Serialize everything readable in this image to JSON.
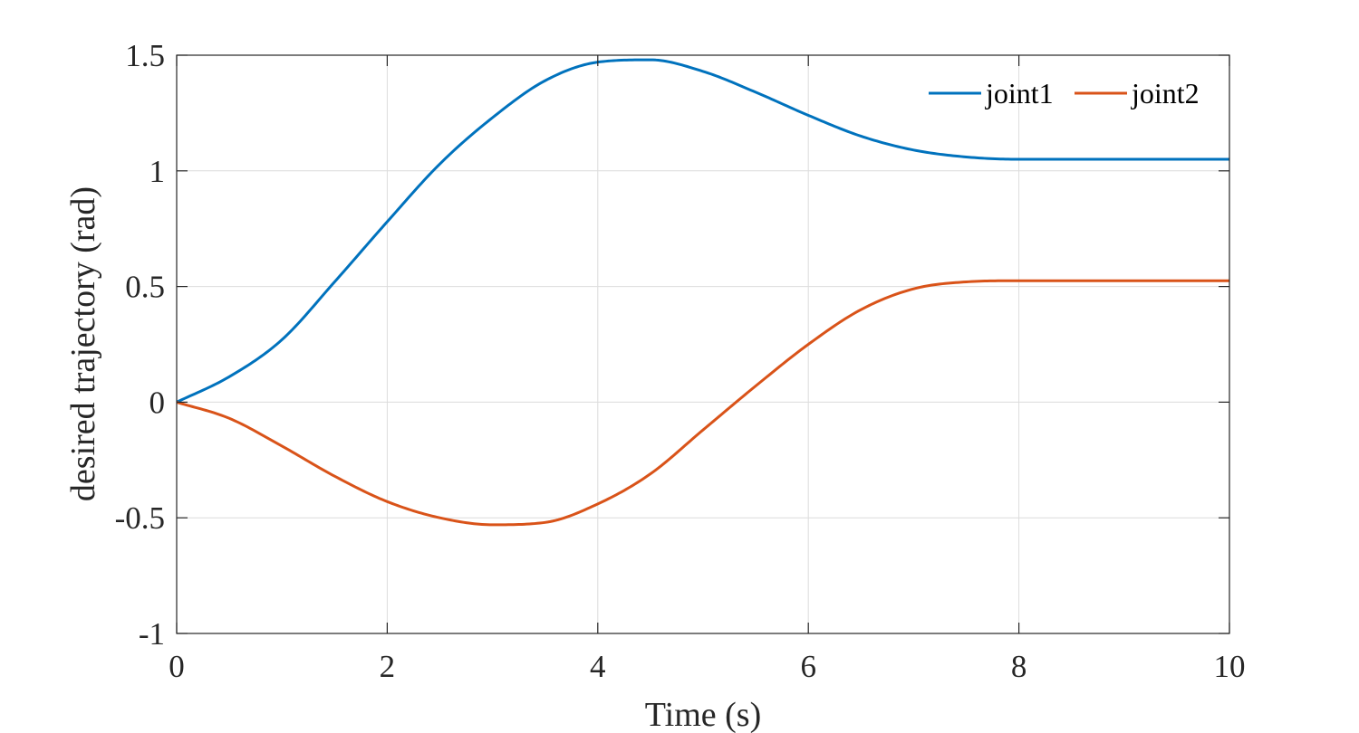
{
  "chart_data": {
    "type": "line",
    "xlabel": "Time (s)",
    "ylabel": "desired trajectory (rad)",
    "xlim": [
      0,
      10
    ],
    "ylim": [
      -1,
      1.5
    ],
    "xticks": [
      "0",
      "2",
      "4",
      "6",
      "8",
      "10"
    ],
    "yticks": [
      "-1",
      "-0.5",
      "0",
      "0.5",
      "1",
      "1.5"
    ],
    "grid": true,
    "legend_position": "top-right",
    "x": [
      0,
      0.5,
      1,
      1.5,
      2,
      2.5,
      3,
      3.5,
      4,
      4.5,
      5,
      5.5,
      6,
      6.5,
      7,
      7.5,
      8,
      8.5,
      9,
      9.5,
      10
    ],
    "series": [
      {
        "name": "joint1",
        "color": "#0072BD",
        "values": [
          0,
          0.11,
          0.27,
          0.52,
          0.78,
          1.03,
          1.23,
          1.39,
          1.47,
          1.48,
          1.43,
          1.34,
          1.24,
          1.15,
          1.09,
          1.06,
          1.05,
          1.05,
          1.05,
          1.05,
          1.05
        ]
      },
      {
        "name": "joint2",
        "color": "#D95319",
        "values": [
          0,
          -0.07,
          -0.19,
          -0.32,
          -0.43,
          -0.5,
          -0.53,
          -0.52,
          -0.44,
          -0.31,
          -0.12,
          0.07,
          0.25,
          0.4,
          0.49,
          0.52,
          0.525,
          0.525,
          0.525,
          0.525,
          0.525
        ]
      }
    ]
  }
}
